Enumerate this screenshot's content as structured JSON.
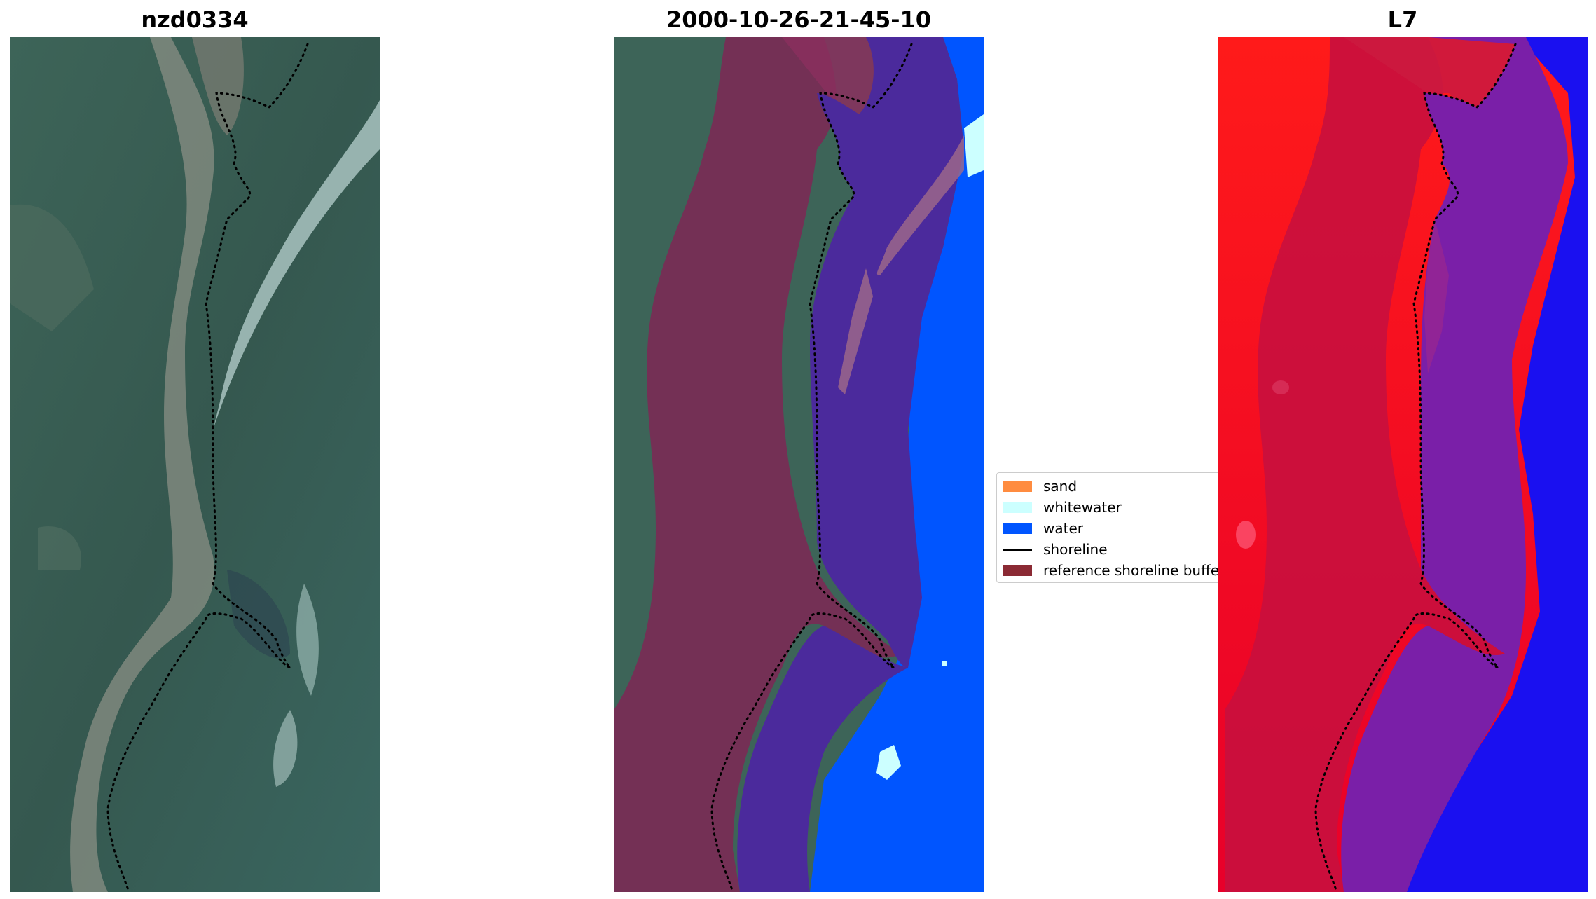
{
  "panels": [
    {
      "title": "nzd0334",
      "type": "rgb-image"
    },
    {
      "title": "2000-10-26-21-45-10",
      "type": "classified-image"
    },
    {
      "title": "L7",
      "type": "index-image"
    }
  ],
  "legend": {
    "position": "center-left",
    "entries": [
      {
        "label": "sand",
        "kind": "patch",
        "color": "#ff8c40"
      },
      {
        "label": "whitewater",
        "kind": "patch",
        "color": "#ccffff"
      },
      {
        "label": "water",
        "kind": "patch",
        "color": "#0055ff"
      },
      {
        "label": "shoreline",
        "kind": "line",
        "color": "#000000"
      },
      {
        "label": "reference shoreline buffer",
        "kind": "patch",
        "color": "#8b2a34"
      }
    ]
  }
}
